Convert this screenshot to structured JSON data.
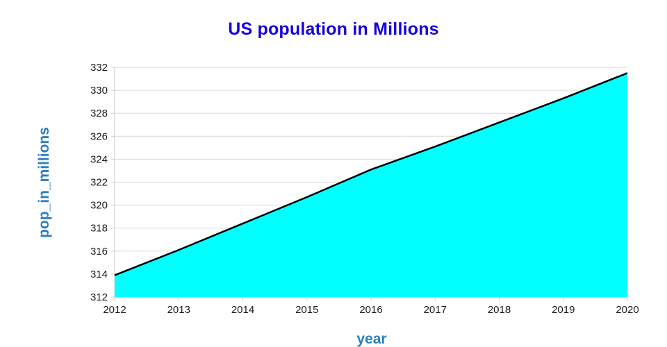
{
  "chart": {
    "title": "US population in Millions",
    "ylabel": "pop_in_millions",
    "xlabel": "year"
  },
  "colors": {
    "title": "#1500e0",
    "axis_label": "#2e7ebf",
    "fill": "#00ffff",
    "line": "#000000",
    "grid": "#d9d9d9",
    "axis": "#c8c8c8",
    "tick_text": "#1a1a1a"
  },
  "chart_data": {
    "type": "area",
    "title": "US population in Millions",
    "xlabel": "year",
    "ylabel": "pop_in_millions",
    "x": [
      2012,
      2013,
      2014,
      2015,
      2016,
      2017,
      2018,
      2019,
      2020
    ],
    "series": [
      {
        "name": "pop_in_millions",
        "values": [
          313.9,
          316.1,
          318.4,
          320.7,
          323.1,
          325.1,
          327.2,
          329.3,
          331.5
        ]
      }
    ],
    "xlim": [
      2012,
      2020
    ],
    "ylim": [
      312,
      332
    ],
    "ytick_step": 2,
    "grid": true,
    "legend": "none"
  }
}
